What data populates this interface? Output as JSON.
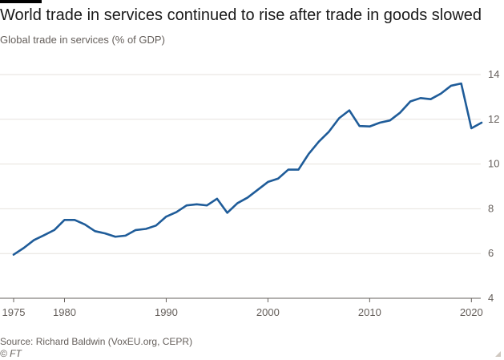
{
  "header": {
    "title": "World trade in services continued to rise after trade in goods slowed",
    "subtitle": "Global trade in services (% of GDP)"
  },
  "footer": {
    "source": "Source: Richard Baldwin (VoxEU.org, CEPR)",
    "credit": "© FT"
  },
  "colors": {
    "line": "#1f5c99",
    "grid": "#e6e2dd",
    "axis": "#66605c"
  },
  "chart_data": {
    "type": "line",
    "title": "World trade in services continued to rise after trade in goods slowed",
    "subtitle": "Global trade in services (% of GDP)",
    "xlabel": "",
    "ylabel": "",
    "xlim": [
      1975,
      2021
    ],
    "ylim": [
      4,
      14
    ],
    "x_ticks": [
      1975,
      1980,
      1990,
      2000,
      2010,
      2020
    ],
    "y_ticks": [
      4,
      6,
      8,
      10,
      12,
      14
    ],
    "y_axis_side": "right",
    "grid": true,
    "legend": "none",
    "series": [
      {
        "name": "",
        "x": [
          1975,
          1976,
          1977,
          1978,
          1979,
          1980,
          1981,
          1982,
          1983,
          1984,
          1985,
          1986,
          1987,
          1988,
          1989,
          1990,
          1991,
          1992,
          1993,
          1994,
          1995,
          1996,
          1997,
          1998,
          1999,
          2000,
          2001,
          2002,
          2003,
          2004,
          2005,
          2006,
          2007,
          2008,
          2009,
          2010,
          2011,
          2012,
          2013,
          2014,
          2015,
          2016,
          2017,
          2018,
          2019,
          2020,
          2021
        ],
        "values": [
          5.95,
          6.25,
          6.6,
          6.82,
          7.05,
          7.5,
          7.5,
          7.3,
          7.0,
          6.9,
          6.75,
          6.8,
          7.05,
          7.1,
          7.25,
          7.65,
          7.85,
          8.15,
          8.2,
          8.15,
          8.45,
          7.82,
          8.25,
          8.5,
          8.85,
          9.2,
          9.35,
          9.75,
          9.75,
          10.45,
          11.0,
          11.45,
          12.05,
          12.4,
          11.7,
          11.68,
          11.85,
          11.95,
          12.3,
          12.8,
          12.95,
          12.9,
          13.15,
          13.5,
          13.6,
          11.6,
          11.85
        ]
      }
    ]
  }
}
